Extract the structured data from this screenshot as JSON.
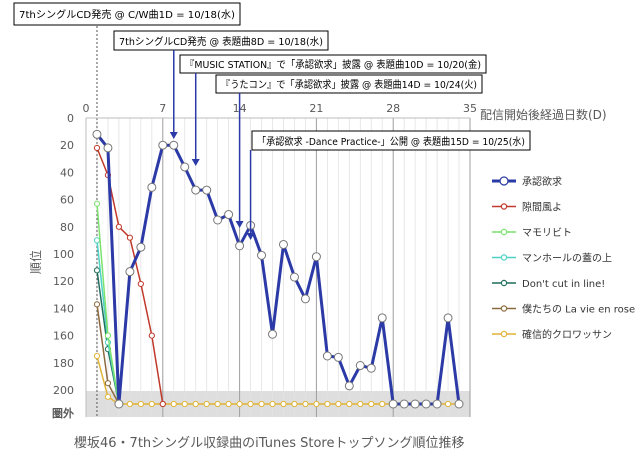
{
  "chart_data": {
    "type": "line",
    "title": "櫻坂46・7thシングル収録曲のiTunes Storeトップソング順位推移",
    "xlabel": "配信開始後経過日数(D)",
    "ylabel": "順位",
    "xlim": [
      0,
      35
    ],
    "ylim": [
      0,
      210
    ],
    "x_ticks": [
      0,
      7,
      14,
      21,
      28,
      35
    ],
    "y_ticks": [
      0,
      20,
      40,
      60,
      80,
      100,
      120,
      140,
      160,
      180,
      200
    ],
    "y_out_label": "圏外",
    "y_out_value": 209,
    "y_reversed": true,
    "grid": "vertical",
    "legend_position": "right",
    "series": [
      {
        "name": "承認欲求",
        "color": "#2b3aa6",
        "marker": "open-circle",
        "points": [
          [
            1,
            12
          ],
          [
            2,
            22
          ],
          [
            3,
            209
          ],
          [
            4,
            113
          ],
          [
            5,
            95
          ],
          [
            6,
            51
          ],
          [
            7,
            20
          ],
          [
            8,
            20
          ],
          [
            9,
            36
          ],
          [
            10,
            53
          ],
          [
            11,
            53
          ],
          [
            12,
            75
          ],
          [
            13,
            71
          ],
          [
            14,
            94
          ],
          [
            15,
            79
          ],
          [
            16,
            101
          ],
          [
            17,
            159
          ],
          [
            18,
            93
          ],
          [
            19,
            117
          ],
          [
            20,
            133
          ],
          [
            21,
            102
          ],
          [
            22,
            175
          ],
          [
            23,
            176
          ],
          [
            24,
            197
          ],
          [
            25,
            182
          ],
          [
            26,
            184
          ],
          [
            27,
            147
          ],
          [
            28,
            209
          ],
          [
            29,
            209
          ],
          [
            30,
            209
          ],
          [
            31,
            209
          ],
          [
            32,
            209
          ],
          [
            33,
            147
          ],
          [
            34,
            209
          ]
        ]
      },
      {
        "name": "隙間風よ",
        "color": "#c0392b",
        "marker": "open-circle",
        "points": [
          [
            1,
            22
          ],
          [
            2,
            42
          ],
          [
            3,
            80
          ],
          [
            4,
            88
          ],
          [
            5,
            122
          ],
          [
            6,
            160
          ],
          [
            7,
            209
          ]
        ]
      },
      {
        "name": "マモリビト",
        "color": "#7ce26e",
        "marker": "open-circle",
        "points": [
          [
            1,
            63
          ],
          [
            2,
            160
          ],
          [
            3,
            209
          ]
        ]
      },
      {
        "name": "マンホールの蓋の上",
        "color": "#4fd1c5",
        "marker": "open-circle",
        "points": [
          [
            1,
            90
          ],
          [
            2,
            165
          ],
          [
            3,
            209
          ]
        ]
      },
      {
        "name": "Don't cut in line!",
        "color": "#1f6e5b",
        "marker": "open-circle",
        "points": [
          [
            1,
            112
          ],
          [
            2,
            170
          ],
          [
            3,
            209
          ]
        ]
      },
      {
        "name": "僕たちの La vie en rose",
        "color": "#8b6a3e",
        "marker": "open-circle",
        "points": [
          [
            1,
            137
          ],
          [
            2,
            195
          ],
          [
            3,
            209
          ]
        ]
      },
      {
        "name": "確信的クロワッサン",
        "color": "#e0b437",
        "marker": "open-circle",
        "points": [
          [
            1,
            175
          ],
          [
            2,
            205
          ],
          [
            3,
            209
          ],
          [
            4,
            209
          ],
          [
            5,
            209
          ],
          [
            6,
            209
          ],
          [
            7,
            209
          ],
          [
            8,
            209
          ],
          [
            9,
            209
          ],
          [
            10,
            209
          ],
          [
            11,
            209
          ],
          [
            12,
            209
          ],
          [
            13,
            209
          ],
          [
            14,
            209
          ],
          [
            15,
            209
          ],
          [
            16,
            209
          ],
          [
            17,
            209
          ],
          [
            18,
            209
          ],
          [
            19,
            209
          ],
          [
            20,
            209
          ],
          [
            21,
            209
          ],
          [
            22,
            209
          ],
          [
            23,
            209
          ],
          [
            24,
            209
          ],
          [
            25,
            209
          ],
          [
            26,
            209
          ],
          [
            27,
            209
          ],
          [
            28,
            209
          ],
          [
            29,
            209
          ],
          [
            30,
            209
          ],
          [
            31,
            209
          ],
          [
            32,
            209
          ],
          [
            33,
            209
          ],
          [
            34,
            209
          ]
        ]
      }
    ],
    "annotations": [
      {
        "text": "7thシングルCD発売 @ C/W曲1D = 10/18(水)",
        "x": 1
      },
      {
        "text": "7thシングルCD発売 @ 表題曲8D = 10/18(水)",
        "x": 8
      },
      {
        "text": "『MUSIC STATION』で「承認欲求」披露 @ 表題曲10D = 10/20(金)",
        "x": 10
      },
      {
        "text": "『うたコン』で「承認欲求」披露 @ 表題曲14D = 10/24(火)",
        "x": 14
      },
      {
        "text": "「承認欲求 -Dance Practice-」公開 @ 表題曲15D = 10/25(水)",
        "x": 15
      }
    ]
  }
}
